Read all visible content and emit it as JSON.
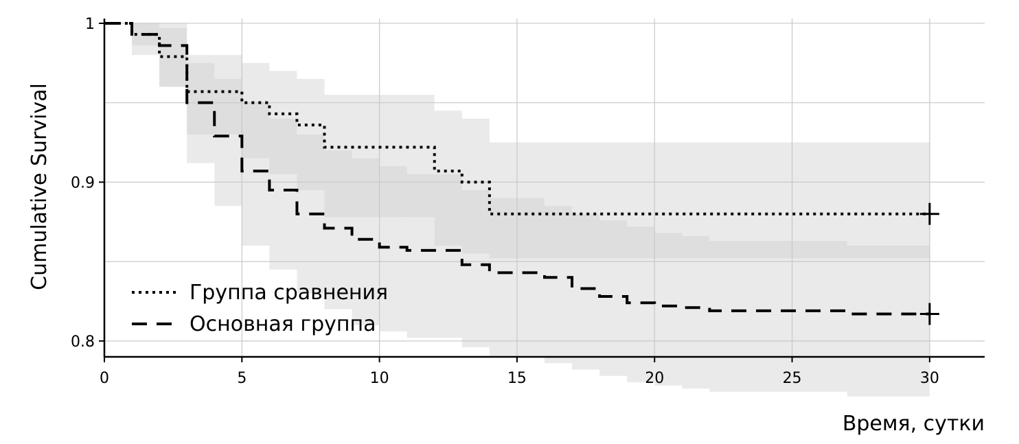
{
  "chart_data": {
    "type": "line",
    "subtype": "kaplan-meier step",
    "xlabel": "Время, сутки",
    "ylabel": "Cumulative Survival",
    "xlim": [
      0,
      32
    ],
    "ylim": [
      0.79,
      1.003
    ],
    "x_ticks": [
      0,
      5,
      10,
      15,
      20,
      25,
      30
    ],
    "x_tick_labels": [
      "0",
      "5",
      "10",
      "15",
      "20",
      "25",
      "30"
    ],
    "y_ticks": [
      0.8,
      0.9,
      1.0
    ],
    "y_tick_labels": [
      "0.8",
      "0.9",
      "1"
    ],
    "y_gridlines": [
      0.8,
      0.85,
      0.9,
      0.95,
      1.0
    ],
    "grid": true,
    "legend_position": "bottom-left",
    "colors": {
      "line": "#000000",
      "band": "#d0d0d0",
      "grid": "#c8c8c8"
    },
    "series": [
      {
        "name": "Группа сравнения",
        "dash": "dotted",
        "censor_at": 30,
        "x": [
          0,
          1,
          2,
          3,
          5,
          6,
          7,
          8,
          12,
          13,
          14,
          30
        ],
        "y": [
          1.0,
          0.993,
          0.979,
          0.957,
          0.95,
          0.943,
          0.936,
          0.922,
          0.907,
          0.9,
          0.88,
          0.88
        ],
        "ci_lower": [
          1.0,
          0.986,
          0.96,
          0.93,
          0.915,
          0.905,
          0.895,
          0.878,
          0.86,
          0.855,
          0.852,
          0.852
        ],
        "ci_upper": [
          1.0,
          1.0,
          0.997,
          0.98,
          0.975,
          0.97,
          0.965,
          0.955,
          0.945,
          0.94,
          0.925,
          0.925
        ]
      },
      {
        "name": "Основная группа",
        "dash": "dashed",
        "censor_at": 30,
        "x": [
          0,
          1,
          2,
          3,
          4,
          5,
          6,
          7,
          8,
          9,
          10,
          11,
          13,
          14,
          16,
          17,
          18,
          19,
          20,
          21,
          22,
          27,
          30
        ],
        "y": [
          1.0,
          0.993,
          0.986,
          0.95,
          0.929,
          0.907,
          0.895,
          0.88,
          0.871,
          0.864,
          0.859,
          0.857,
          0.848,
          0.843,
          0.84,
          0.833,
          0.828,
          0.824,
          0.822,
          0.821,
          0.819,
          0.817,
          0.817
        ],
        "ci_lower": [
          1.0,
          0.98,
          0.96,
          0.912,
          0.885,
          0.86,
          0.845,
          0.83,
          0.82,
          0.81,
          0.806,
          0.802,
          0.796,
          0.79,
          0.786,
          0.782,
          0.778,
          0.774,
          0.772,
          0.77,
          0.768,
          0.765,
          0.765
        ],
        "ci_upper": [
          1.0,
          1.0,
          1.0,
          0.975,
          0.965,
          0.95,
          0.94,
          0.93,
          0.92,
          0.915,
          0.91,
          0.905,
          0.895,
          0.89,
          0.885,
          0.88,
          0.876,
          0.872,
          0.868,
          0.866,
          0.863,
          0.86,
          0.86
        ]
      }
    ]
  }
}
